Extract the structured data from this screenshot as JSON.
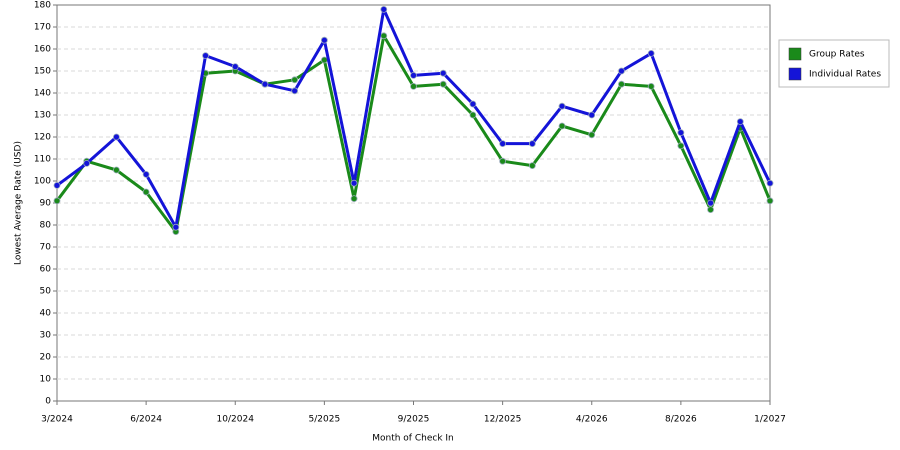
{
  "chart_data": {
    "type": "line",
    "x_label": "Month of Check In",
    "y_label": "Lowest Average Rate (USD)",
    "categories": [
      "3/2024",
      null,
      null,
      "6/2024",
      null,
      null,
      "10/2024",
      null,
      null,
      "5/2025",
      null,
      null,
      "9/2025",
      null,
      null,
      "12/2025",
      null,
      null,
      "4/2026",
      null,
      null,
      "8/2026",
      null,
      null,
      "1/2027"
    ],
    "series": [
      {
        "name": "Group Rates",
        "color": "#1a8a1a",
        "values": [
          91,
          109,
          105,
          95,
          77,
          149,
          150,
          144,
          146,
          155,
          92,
          166,
          143,
          144,
          130,
          109,
          107,
          125,
          121,
          144,
          143,
          116,
          87,
          124,
          91
        ]
      },
      {
        "name": "Individual Rates",
        "color": "#1414d8",
        "values": [
          98,
          108,
          120,
          103,
          79,
          157,
          152,
          144,
          141,
          164,
          99,
          178,
          148,
          149,
          135,
          117,
          117,
          134,
          130,
          150,
          158,
          122,
          90,
          127,
          99
        ]
      }
    ],
    "ylim": [
      0,
      180
    ],
    "yticks": [
      0,
      10,
      20,
      30,
      40,
      50,
      60,
      70,
      80,
      90,
      100,
      110,
      120,
      130,
      140,
      150,
      160,
      170,
      180
    ],
    "grid": true,
    "legend": "right"
  }
}
